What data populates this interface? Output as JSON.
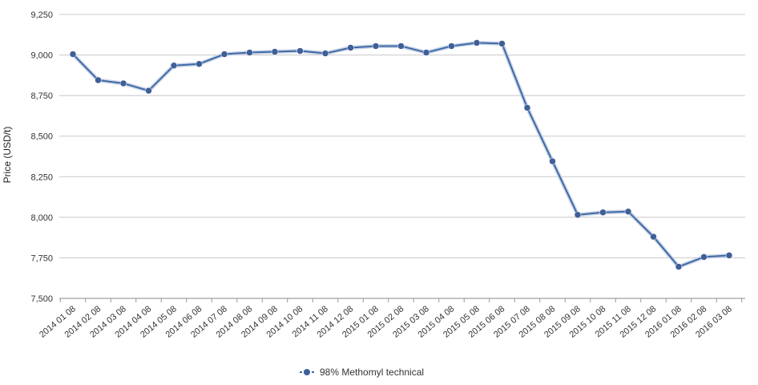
{
  "chart_data": {
    "type": "line",
    "title": "",
    "xlabel": "",
    "ylabel": "Price (USD/t)",
    "ylim": [
      7500,
      9250
    ],
    "yticks": [
      "9,250",
      "9,000",
      "8,750",
      "8,500",
      "8,250",
      "8,000",
      "7,750",
      "7,500"
    ],
    "ytick_values": [
      9250,
      9000,
      8750,
      8500,
      8250,
      8000,
      7750,
      7500
    ],
    "grid": "horizontal",
    "legend_position": "bottom",
    "categories": [
      "2014 01 08",
      "2014 02 08",
      "2014 03 08",
      "2014 04 08",
      "2014 05 08",
      "2014 06 08",
      "2014 07 08",
      "2014 08 08",
      "2014 09 08",
      "2014 10 08",
      "2014 11 08",
      "2014 12 08",
      "2015 01 08",
      "2015 02 08",
      "2015 03 08",
      "2015 04 08",
      "2015 05 08",
      "2015 06 08",
      "2015 07 08",
      "2015 08 08",
      "2015 09 08",
      "2015 10 08",
      "2015 11 08",
      "2015 12 08",
      "2016 01 08",
      "2016 02 08",
      "2016 03 08"
    ],
    "series": [
      {
        "name": "98% Methomyl technical",
        "color": "#3f6aa7",
        "marker_color": "#3f5f9a",
        "values": [
          9005,
          8845,
          8825,
          8780,
          8935,
          8945,
          9005,
          9015,
          9020,
          9025,
          9010,
          9045,
          9055,
          9055,
          9015,
          9055,
          9075,
          9070,
          8675,
          8345,
          8015,
          8030,
          8035,
          7880,
          7695,
          7755,
          7765
        ]
      }
    ]
  }
}
